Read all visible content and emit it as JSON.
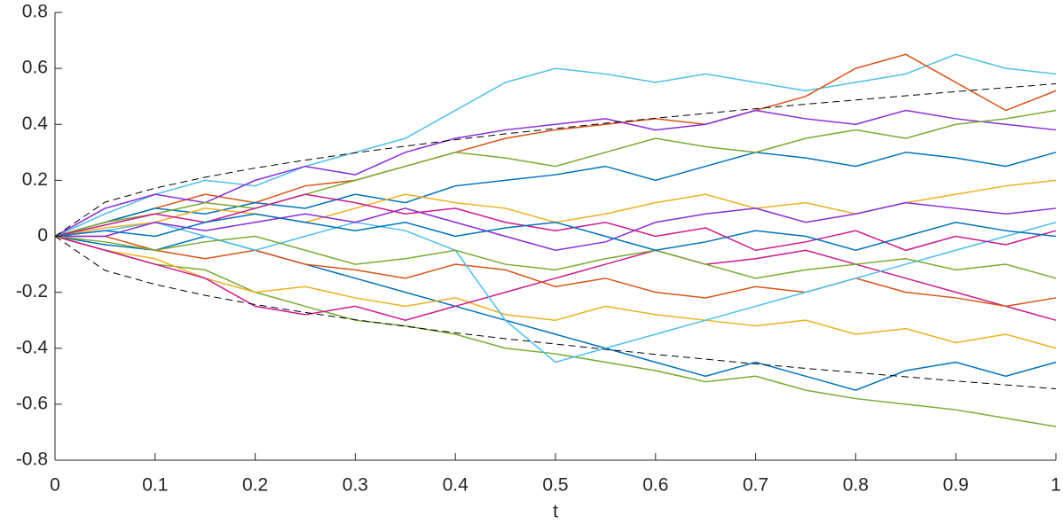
{
  "chart_data": {
    "type": "line",
    "x_label": "t",
    "x": [
      0,
      0.05,
      0.1,
      0.15,
      0.2,
      0.25,
      0.3,
      0.35,
      0.4,
      0.45,
      0.5,
      0.55,
      0.6,
      0.65,
      0.7,
      0.75,
      0.8,
      0.85,
      0.9,
      0.95,
      1
    ],
    "xlim": [
      0,
      1
    ],
    "xticks": [
      0,
      0.1,
      0.2,
      0.3,
      0.4,
      0.5,
      0.6,
      0.7,
      0.8,
      0.9,
      1
    ],
    "ylim": [
      -0.8,
      0.8
    ],
    "yticks": [
      -0.8,
      -0.6,
      -0.4,
      -0.2,
      0,
      0.2,
      0.4,
      0.6,
      0.8
    ],
    "grid": false,
    "series": [
      {
        "color": "#4DBEEE",
        "values": [
          0,
          0.08,
          0.15,
          0.2,
          0.18,
          0.25,
          0.3,
          0.35,
          0.45,
          0.55,
          0.6,
          0.58,
          0.55,
          0.58,
          0.55,
          0.52,
          0.55,
          0.58,
          0.65,
          0.6,
          0.58
        ]
      },
      {
        "color": "#77AC30",
        "values": [
          0,
          -0.05,
          -0.1,
          -0.12,
          -0.2,
          -0.25,
          -0.3,
          -0.32,
          -0.35,
          -0.4,
          -0.42,
          -0.45,
          -0.48,
          -0.52,
          -0.5,
          -0.55,
          -0.58,
          -0.6,
          -0.62,
          -0.65,
          -0.68
        ]
      },
      {
        "color": "#D95319",
        "values": [
          0,
          0.05,
          0.1,
          0.15,
          0.12,
          0.18,
          0.2,
          0.25,
          0.3,
          0.35,
          0.38,
          0.4,
          0.42,
          0.4,
          0.45,
          0.5,
          0.6,
          0.65,
          0.55,
          0.45,
          0.52
        ]
      },
      {
        "color": "#0072BD",
        "values": [
          0,
          -0.03,
          -0.05,
          0,
          -0.05,
          -0.1,
          -0.15,
          -0.2,
          -0.25,
          -0.3,
          -0.35,
          -0.4,
          -0.45,
          -0.5,
          -0.45,
          -0.5,
          -0.55,
          -0.48,
          -0.45,
          -0.5,
          -0.45
        ]
      },
      {
        "color": "#8B2BD9",
        "values": [
          0,
          0.1,
          0.15,
          0.12,
          0.2,
          0.25,
          0.22,
          0.3,
          0.35,
          0.38,
          0.4,
          0.42,
          0.38,
          0.4,
          0.45,
          0.42,
          0.4,
          0.45,
          0.42,
          0.4,
          0.38
        ]
      },
      {
        "color": "#EDB120",
        "values": [
          0,
          -0.05,
          -0.08,
          -0.15,
          -0.2,
          -0.18,
          -0.22,
          -0.25,
          -0.22,
          -0.28,
          -0.3,
          -0.25,
          -0.28,
          -0.3,
          -0.32,
          -0.3,
          -0.35,
          -0.33,
          -0.38,
          -0.35,
          -0.4
        ]
      },
      {
        "color": "#CC1A8F",
        "values": [
          0,
          -0.05,
          -0.1,
          -0.15,
          -0.25,
          -0.28,
          -0.25,
          -0.3,
          -0.25,
          -0.2,
          -0.15,
          -0.1,
          -0.05,
          -0.1,
          -0.08,
          -0.05,
          -0.1,
          -0.15,
          -0.2,
          -0.25,
          -0.3
        ]
      },
      {
        "color": "#0072BD",
        "values": [
          0,
          0.05,
          0.1,
          0.08,
          0.12,
          0.1,
          0.15,
          0.12,
          0.18,
          0.2,
          0.22,
          0.25,
          0.2,
          0.25,
          0.3,
          0.28,
          0.25,
          0.3,
          0.28,
          0.25,
          0.3
        ]
      },
      {
        "color": "#D95319",
        "values": [
          0,
          0,
          -0.05,
          -0.08,
          -0.05,
          -0.1,
          -0.12,
          -0.15,
          -0.1,
          -0.12,
          -0.18,
          -0.15,
          -0.2,
          -0.22,
          -0.18,
          -0.2,
          -0.15,
          -0.2,
          -0.22,
          -0.25,
          -0.22
        ]
      },
      {
        "color": "#77AC30",
        "values": [
          0,
          0.05,
          0.08,
          0.12,
          0.1,
          0.15,
          0.2,
          0.25,
          0.3,
          0.28,
          0.25,
          0.3,
          0.35,
          0.32,
          0.3,
          0.35,
          0.38,
          0.35,
          0.4,
          0.42,
          0.45
        ]
      },
      {
        "color": "#4DBEEE",
        "values": [
          0,
          0.02,
          0.05,
          0,
          -0.05,
          0,
          0.05,
          0.02,
          -0.05,
          -0.3,
          -0.45,
          -0.4,
          -0.35,
          -0.3,
          -0.25,
          -0.2,
          -0.15,
          -0.1,
          -0.05,
          0,
          0.05
        ]
      },
      {
        "color": "#EDB120",
        "values": [
          0,
          0.03,
          0.05,
          0.1,
          0.08,
          0.05,
          0.1,
          0.15,
          0.12,
          0.1,
          0.05,
          0.08,
          0.12,
          0.15,
          0.1,
          0.12,
          0.08,
          0.12,
          0.15,
          0.18,
          0.2
        ]
      },
      {
        "color": "#8B2BD9",
        "values": [
          0,
          0,
          0.05,
          0.02,
          0.05,
          0.08,
          0.05,
          0.1,
          0.05,
          0,
          -0.05,
          -0.02,
          0.05,
          0.08,
          0.1,
          0.05,
          0.08,
          0.12,
          0.1,
          0.08,
          0.1
        ]
      },
      {
        "color": "#CC1A8F",
        "values": [
          0,
          0.04,
          0.08,
          0.05,
          0.1,
          0.15,
          0.12,
          0.08,
          0.1,
          0.05,
          0.02,
          0.05,
          0,
          0.03,
          -0.05,
          -0.02,
          0.02,
          -0.05,
          0,
          -0.03,
          0.02
        ]
      },
      {
        "color": "#77AC30",
        "values": [
          0,
          -0.02,
          -0.05,
          -0.02,
          0,
          -0.05,
          -0.1,
          -0.08,
          -0.05,
          -0.1,
          -0.12,
          -0.08,
          -0.05,
          -0.1,
          -0.15,
          -0.12,
          -0.1,
          -0.08,
          -0.12,
          -0.1,
          -0.15
        ]
      },
      {
        "color": "#0072BD",
        "values": [
          0,
          0.02,
          0,
          0.05,
          0.08,
          0.05,
          0.02,
          0.05,
          0,
          0.03,
          0.05,
          0,
          -0.05,
          -0.02,
          0.02,
          0,
          -0.05,
          0,
          0.05,
          0.02,
          0
        ]
      },
      {
        "color": "#000000",
        "line_style": "dashed",
        "values": [
          0,
          0.122,
          0.172,
          0.211,
          0.244,
          0.272,
          0.298,
          0.322,
          0.345,
          0.366,
          0.385,
          0.404,
          0.422,
          0.439,
          0.456,
          0.472,
          0.487,
          0.502,
          0.517,
          0.531,
          0.545
        ]
      },
      {
        "color": "#000000",
        "line_style": "dashed",
        "values": [
          0,
          -0.122,
          -0.172,
          -0.211,
          -0.244,
          -0.272,
          -0.298,
          -0.322,
          -0.345,
          -0.366,
          -0.385,
          -0.404,
          -0.422,
          -0.439,
          -0.456,
          -0.472,
          -0.487,
          -0.502,
          -0.517,
          -0.531,
          -0.545
        ]
      }
    ]
  }
}
